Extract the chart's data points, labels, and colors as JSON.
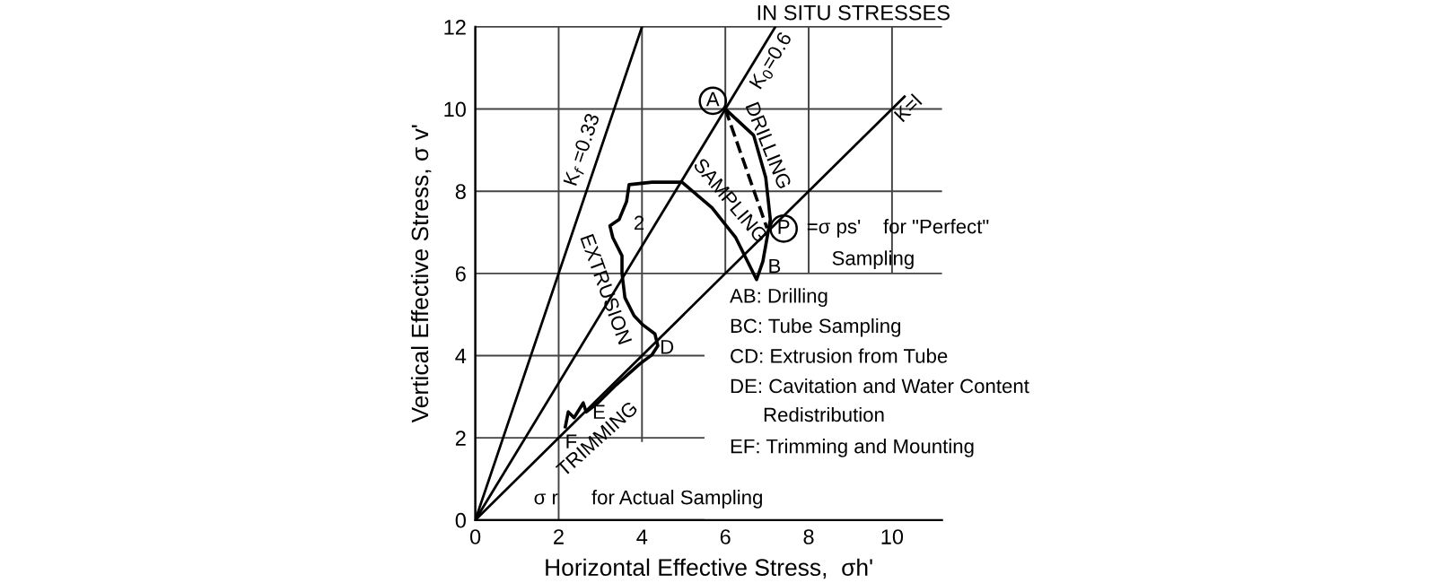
{
  "chart_data": {
    "type": "line",
    "title": "IN SITU STRESSES",
    "xlabel": "Horizontal Effective Stress,  σh'",
    "ylabel": "Vertical Effective Stress, σ v'",
    "xlim": [
      0,
      11.2
    ],
    "ylim": [
      0,
      12
    ],
    "xticks": [
      0,
      2,
      4,
      6,
      8,
      10
    ],
    "yticks": [
      0,
      2,
      4,
      6,
      8,
      10,
      12
    ],
    "grid": true,
    "legend": false,
    "series": [
      {
        "name": "K$_{f}$ =0.33",
        "color": "#000000",
        "x": [
          0,
          4.0
        ],
        "values": [
          0,
          12
        ]
      },
      {
        "name": "K$_{0}$=0.6",
        "color": "#000000",
        "x": [
          0,
          7.2
        ],
        "values": [
          0,
          12
        ]
      },
      {
        "name": "K=l",
        "color": "#000000",
        "x": [
          0,
          10.3
        ],
        "values": [
          0,
          10.3
        ]
      },
      {
        "color": "#000000",
        "line_style": "dashed",
        "x": [
          6,
          7.0
        ],
        "values": [
          10,
          7.1
        ]
      },
      {
        "color": "#000000",
        "x": [
          6,
          6.68,
          6.97,
          7.08,
          6.9,
          6.75,
          6.25,
          5.68,
          4.96,
          4.24,
          3.69,
          3.63,
          3.45,
          3.23,
          3.3,
          3.52,
          3.52,
          3.59,
          3.81,
          4.02,
          4.31,
          4.38,
          4.24,
          3.95,
          3.38,
          2.94,
          2.66,
          2.59,
          2.37,
          2.23,
          2.16
        ],
        "values": [
          10,
          9.36,
          8.33,
          7.31,
          6.29,
          5.85,
          6.87,
          7.6,
          8.22,
          8.22,
          8.16,
          7.75,
          7.31,
          7.16,
          6.87,
          6.43,
          6.0,
          5.41,
          4.97,
          4.75,
          4.53,
          4.24,
          4.02,
          3.8,
          3.29,
          2.85,
          2.63,
          2.85,
          2.49,
          2.63,
          2.27
        ]
      },
      {
        "type": "scatter",
        "marker": "circle",
        "color": "#000000",
        "x": [
          5.7,
          7.4
        ],
        "values": [
          10.2,
          7.09
        ]
      }
    ],
    "annotations": [
      {
        "text": "A",
        "x": 5.7,
        "y": 10.2
      },
      {
        "text": "P",
        "x": 7.4,
        "y": 7.09
      },
      "DRILLING",
      "SAMPLING",
      "EXTRUSION",
      "TRIMMING",
      "2",
      "B",
      "D",
      "E",
      "F",
      "=σ ps'    for \"Perfect\"",
      "Sampling",
      "σ r      for Actual Sampling",
      "AB: Drilling",
      "BC: Tube Sampling",
      "CD: Extrusion from Tube",
      "DE: Cavitation and Water Content\n      Redistribution",
      "EF: Trimming and Mounting"
    ]
  }
}
